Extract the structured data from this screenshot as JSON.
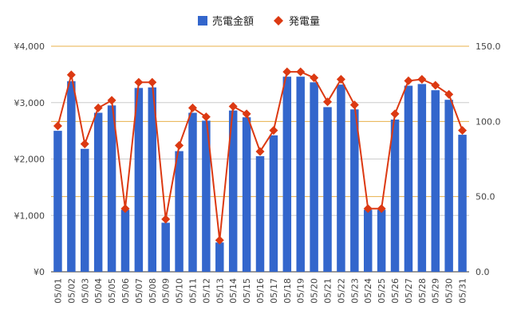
{
  "chart_data": {
    "type": "bar",
    "categories": [
      "05/01",
      "05/02",
      "05/03",
      "05/04",
      "05/05",
      "05/06",
      "05/07",
      "05/08",
      "05/09",
      "05/10",
      "05/11",
      "05/12",
      "05/13",
      "05/14",
      "05/15",
      "05/16",
      "05/17",
      "05/18",
      "05/19",
      "05/20",
      "05/21",
      "05/22",
      "05/23",
      "05/24",
      "05/25",
      "05/26",
      "05/27",
      "05/28",
      "05/29",
      "05/30",
      "05/31"
    ],
    "series": [
      {
        "name": "売電金額",
        "kind": "bar",
        "axis": "left",
        "color": "#3366cc",
        "values": [
          2500,
          3380,
          2180,
          2820,
          2950,
          1100,
          3260,
          3270,
          870,
          2140,
          2820,
          2680,
          520,
          2860,
          2740,
          2050,
          2420,
          3460,
          3460,
          3360,
          2920,
          3320,
          2880,
          1100,
          1100,
          2700,
          3300,
          3330,
          3220,
          3050,
          2430
        ]
      },
      {
        "name": "発電量",
        "kind": "line",
        "axis": "right",
        "color": "#dc3912",
        "values": [
          97,
          131,
          85,
          109,
          114,
          42,
          126,
          126,
          35,
          84,
          109,
          103,
          21,
          110,
          105,
          80,
          94,
          133,
          133,
          129,
          113,
          128,
          111,
          42,
          42,
          105,
          127,
          128,
          124,
          118,
          94
        ]
      }
    ],
    "y_left": {
      "min": 0,
      "max": 4000,
      "ticks": [
        "¥0",
        "¥1,000",
        "¥2,000",
        "¥3,000",
        "¥4,000"
      ]
    },
    "y_right": {
      "min": 0,
      "max": 150,
      "ticks": [
        "0.0",
        "50.0",
        "100.0",
        "150.0"
      ]
    },
    "legend": {
      "position": "top"
    },
    "grid": true,
    "grid_color_major": "#cccccc",
    "grid_color_right": "#e8b04a"
  }
}
